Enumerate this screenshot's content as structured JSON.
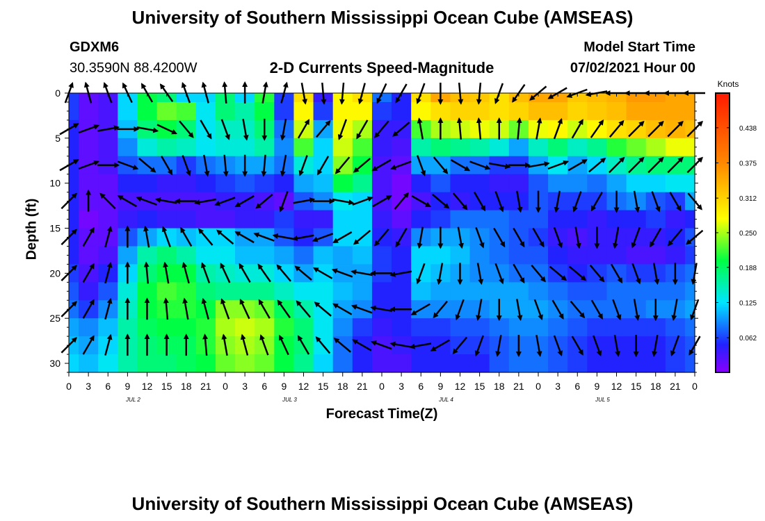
{
  "header": {
    "title_top": "University of Southern Mississippi Ocean Cube (AMSEAS)",
    "title_bottom": "University of Southern Mississippi Ocean Cube (AMSEAS)",
    "station": "GDXM6",
    "location": "30.3590N  88.4200W",
    "plot_title": "2-D Currents Speed-Magnitude",
    "model_label": "Model Start Time",
    "model_time": "07/02/2021 Hour 00"
  },
  "chart_data": {
    "type": "heatmap",
    "title": "2-D Currents Speed-Magnitude",
    "xlabel": "Forecast Time(Z)",
    "ylabel": "Depth (ft)",
    "x_ticks": [
      "0",
      "3",
      "6",
      "9",
      "12",
      "15",
      "18",
      "21",
      "0",
      "3",
      "6",
      "9",
      "12",
      "15",
      "18",
      "21",
      "0",
      "3",
      "6",
      "9",
      "12",
      "15",
      "18",
      "21",
      "0",
      "3",
      "6",
      "9",
      "12",
      "15",
      "18",
      "21",
      "0"
    ],
    "day_labels": [
      "JUL 2",
      "JUL 3",
      "JUL 4",
      "JUL 5"
    ],
    "y_ticks": [
      "0",
      "5",
      "10",
      "15",
      "20",
      "25",
      "30"
    ],
    "ylim": [
      0,
      31
    ],
    "y_inverted": true,
    "colorbar": {
      "unit": "Knots",
      "ticks": [
        "0.438",
        "0.375",
        "0.312",
        "0.250",
        "0.188",
        "0.125",
        "0.062"
      ],
      "tick_values": [
        0.438,
        0.375,
        0.312,
        0.25,
        0.188,
        0.125,
        0.062
      ],
      "range": [
        0,
        0.5
      ],
      "colors": [
        "#8800ff",
        "#2222ff",
        "#00e5ff",
        "#00ff44",
        "#ffff00",
        "#ff8800",
        "#ff1a00"
      ]
    },
    "depths": [
      0,
      2,
      4,
      6,
      8,
      10,
      12,
      14,
      16,
      18,
      20,
      22,
      24,
      26,
      28,
      30
    ],
    "speed": [
      [
        0.06,
        0.02,
        0.03,
        0.12,
        0.2,
        0.18,
        0.12,
        0.12,
        0.18,
        0.12,
        0.21,
        0.06,
        0.3,
        0.04,
        0.28,
        0.3,
        0.08,
        0.05,
        0.3,
        0.35,
        0.33,
        0.32,
        0.3,
        0.33,
        0.35,
        0.35,
        0.32,
        0.33,
        0.34,
        0.36,
        0.36,
        0.35,
        0.35
      ],
      [
        0.06,
        0.02,
        0.03,
        0.12,
        0.2,
        0.23,
        0.22,
        0.13,
        0.18,
        0.16,
        0.2,
        0.06,
        0.28,
        0.06,
        0.28,
        0.28,
        0.06,
        0.05,
        0.28,
        0.3,
        0.31,
        0.31,
        0.3,
        0.31,
        0.33,
        0.33,
        0.31,
        0.32,
        0.33,
        0.35,
        0.35,
        0.35,
        0.35
      ],
      [
        0.05,
        0.02,
        0.03,
        0.11,
        0.18,
        0.2,
        0.18,
        0.13,
        0.15,
        0.15,
        0.18,
        0.08,
        0.26,
        0.1,
        0.27,
        0.25,
        0.04,
        0.04,
        0.22,
        0.25,
        0.26,
        0.27,
        0.26,
        0.23,
        0.27,
        0.28,
        0.26,
        0.28,
        0.3,
        0.31,
        0.33,
        0.34,
        0.33
      ],
      [
        0.05,
        0.02,
        0.03,
        0.09,
        0.14,
        0.16,
        0.15,
        0.13,
        0.14,
        0.14,
        0.16,
        0.09,
        0.22,
        0.12,
        0.26,
        0.22,
        0.04,
        0.03,
        0.16,
        0.18,
        0.17,
        0.16,
        0.14,
        0.1,
        0.15,
        0.18,
        0.15,
        0.17,
        0.21,
        0.23,
        0.25,
        0.27,
        0.27
      ],
      [
        0.05,
        0.02,
        0.03,
        0.07,
        0.08,
        0.08,
        0.06,
        0.08,
        0.09,
        0.1,
        0.1,
        0.08,
        0.14,
        0.12,
        0.24,
        0.2,
        0.03,
        0.02,
        0.1,
        0.1,
        0.08,
        0.08,
        0.06,
        0.06,
        0.1,
        0.13,
        0.1,
        0.12,
        0.15,
        0.17,
        0.18,
        0.18,
        0.18
      ],
      [
        0.05,
        0.02,
        0.02,
        0.05,
        0.05,
        0.04,
        0.04,
        0.05,
        0.06,
        0.07,
        0.06,
        0.05,
        0.1,
        0.11,
        0.2,
        0.17,
        0.03,
        0.01,
        0.05,
        0.07,
        0.05,
        0.05,
        0.04,
        0.04,
        0.07,
        0.09,
        0.09,
        0.08,
        0.1,
        0.12,
        0.12,
        0.13,
        0.13
      ],
      [
        0.05,
        0.02,
        0.02,
        0.03,
        0.03,
        0.03,
        0.03,
        0.03,
        0.04,
        0.04,
        0.03,
        0.02,
        0.07,
        0.09,
        0.13,
        0.12,
        0.03,
        0.01,
        0.03,
        0.05,
        0.04,
        0.05,
        0.05,
        0.05,
        0.07,
        0.06,
        0.06,
        0.06,
        0.08,
        0.09,
        0.07,
        0.06,
        0.1
      ],
      [
        0.05,
        0.01,
        0.02,
        0.04,
        0.05,
        0.04,
        0.04,
        0.03,
        0.03,
        0.04,
        0.04,
        0.06,
        0.04,
        0.04,
        0.12,
        0.12,
        0.04,
        0.02,
        0.05,
        0.06,
        0.08,
        0.08,
        0.08,
        0.07,
        0.07,
        0.05,
        0.05,
        0.04,
        0.05,
        0.05,
        0.06,
        0.04,
        0.05
      ],
      [
        0.05,
        0.02,
        0.02,
        0.07,
        0.1,
        0.12,
        0.11,
        0.12,
        0.12,
        0.1,
        0.1,
        0.07,
        0.05,
        0.07,
        0.12,
        0.12,
        0.05,
        0.04,
        0.09,
        0.1,
        0.1,
        0.09,
        0.08,
        0.07,
        0.06,
        0.04,
        0.03,
        0.04,
        0.04,
        0.04,
        0.04,
        0.05,
        0.07
      ],
      [
        0.05,
        0.02,
        0.03,
        0.1,
        0.16,
        0.18,
        0.16,
        0.13,
        0.13,
        0.11,
        0.11,
        0.1,
        0.08,
        0.11,
        0.1,
        0.11,
        0.06,
        0.05,
        0.12,
        0.12,
        0.11,
        0.09,
        0.08,
        0.07,
        0.07,
        0.05,
        0.04,
        0.04,
        0.04,
        0.03,
        0.03,
        0.04,
        0.06
      ],
      [
        0.06,
        0.03,
        0.05,
        0.12,
        0.18,
        0.2,
        0.2,
        0.16,
        0.15,
        0.14,
        0.14,
        0.12,
        0.1,
        0.12,
        0.1,
        0.1,
        0.06,
        0.05,
        0.12,
        0.11,
        0.1,
        0.09,
        0.09,
        0.08,
        0.08,
        0.06,
        0.05,
        0.06,
        0.07,
        0.06,
        0.06,
        0.07,
        0.08
      ],
      [
        0.07,
        0.04,
        0.07,
        0.14,
        0.2,
        0.22,
        0.21,
        0.18,
        0.17,
        0.17,
        0.17,
        0.15,
        0.13,
        0.13,
        0.11,
        0.1,
        0.05,
        0.05,
        0.11,
        0.1,
        0.1,
        0.1,
        0.1,
        0.1,
        0.09,
        0.08,
        0.07,
        0.07,
        0.08,
        0.08,
        0.08,
        0.08,
        0.09
      ],
      [
        0.08,
        0.06,
        0.09,
        0.15,
        0.2,
        0.21,
        0.21,
        0.2,
        0.24,
        0.24,
        0.23,
        0.19,
        0.16,
        0.13,
        0.1,
        0.09,
        0.05,
        0.05,
        0.09,
        0.09,
        0.09,
        0.09,
        0.1,
        0.1,
        0.1,
        0.09,
        0.08,
        0.08,
        0.08,
        0.08,
        0.09,
        0.09,
        0.1
      ],
      [
        0.1,
        0.09,
        0.11,
        0.16,
        0.19,
        0.2,
        0.2,
        0.21,
        0.25,
        0.26,
        0.25,
        0.21,
        0.18,
        0.13,
        0.09,
        0.06,
        0.04,
        0.05,
        0.06,
        0.06,
        0.07,
        0.07,
        0.08,
        0.09,
        0.09,
        0.08,
        0.07,
        0.06,
        0.06,
        0.06,
        0.06,
        0.07,
        0.08
      ],
      [
        0.11,
        0.1,
        0.12,
        0.16,
        0.18,
        0.19,
        0.19,
        0.21,
        0.24,
        0.25,
        0.24,
        0.2,
        0.18,
        0.13,
        0.08,
        0.05,
        0.03,
        0.04,
        0.05,
        0.05,
        0.06,
        0.06,
        0.07,
        0.08,
        0.08,
        0.07,
        0.06,
        0.05,
        0.05,
        0.05,
        0.05,
        0.06,
        0.07
      ],
      [
        0.12,
        0.11,
        0.13,
        0.16,
        0.18,
        0.18,
        0.19,
        0.2,
        0.23,
        0.24,
        0.23,
        0.2,
        0.17,
        0.12,
        0.08,
        0.05,
        0.03,
        0.03,
        0.05,
        0.05,
        0.05,
        0.05,
        0.07,
        0.08,
        0.08,
        0.07,
        0.06,
        0.05,
        0.05,
        0.05,
        0.05,
        0.06,
        0.07
      ]
    ],
    "vectors": {
      "x_step_hours": 3,
      "depths": [
        0,
        4,
        8,
        12,
        16,
        20,
        24,
        28
      ],
      "directions_deg": [
        [
          20,
          345,
          340,
          335,
          330,
          325,
          340,
          345,
          355,
          0,
          10,
          15,
          170,
          175,
          185,
          195,
          205,
          210,
          200,
          180,
          175,
          185,
          200,
          215,
          230,
          240,
          250,
          260,
          270,
          270,
          270,
          270,
          270
        ],
        [
          60,
          70,
          80,
          90,
          100,
          115,
          140,
          150,
          160,
          170,
          180,
          190,
          30,
          40,
          200,
          210,
          220,
          230,
          350,
          0,
          355,
          355,
          0,
          5,
          10,
          20,
          30,
          35,
          40,
          45,
          45,
          45,
          45
        ],
        [
          60,
          70,
          90,
          110,
          130,
          150,
          160,
          170,
          175,
          180,
          185,
          190,
          200,
          210,
          220,
          230,
          240,
          250,
          160,
          140,
          120,
          110,
          100,
          90,
          80,
          70,
          60,
          50,
          45,
          45,
          45,
          45,
          45
        ],
        [
          45,
          0,
          315,
          300,
          290,
          280,
          270,
          260,
          250,
          240,
          230,
          200,
          80,
          90,
          100,
          70,
          60,
          40,
          120,
          130,
          140,
          150,
          160,
          170,
          180,
          190,
          200,
          210,
          180,
          170,
          160,
          150,
          140
        ],
        [
          45,
          30,
          15,
          0,
          350,
          340,
          330,
          320,
          310,
          300,
          290,
          280,
          260,
          250,
          240,
          230,
          220,
          210,
          190,
          180,
          170,
          160,
          150,
          150,
          150,
          160,
          170,
          180,
          190,
          200,
          210,
          220,
          230
        ],
        [
          45,
          30,
          15,
          0,
          355,
          350,
          345,
          340,
          335,
          330,
          325,
          320,
          310,
          300,
          290,
          280,
          270,
          260,
          200,
          190,
          180,
          170,
          160,
          150,
          140,
          130,
          130,
          140,
          150,
          160,
          170,
          180,
          190
        ],
        [
          45,
          30,
          15,
          0,
          0,
          355,
          350,
          345,
          340,
          335,
          330,
          325,
          320,
          310,
          300,
          290,
          280,
          270,
          240,
          220,
          200,
          190,
          180,
          170,
          160,
          150,
          140,
          150,
          160,
          170,
          180,
          190,
          200
        ],
        [
          45,
          30,
          15,
          0,
          0,
          0,
          0,
          355,
          350,
          345,
          340,
          335,
          330,
          320,
          310,
          300,
          290,
          280,
          260,
          240,
          220,
          200,
          190,
          180,
          170,
          160,
          150,
          160,
          170,
          180,
          190,
          200,
          210
        ]
      ]
    }
  }
}
